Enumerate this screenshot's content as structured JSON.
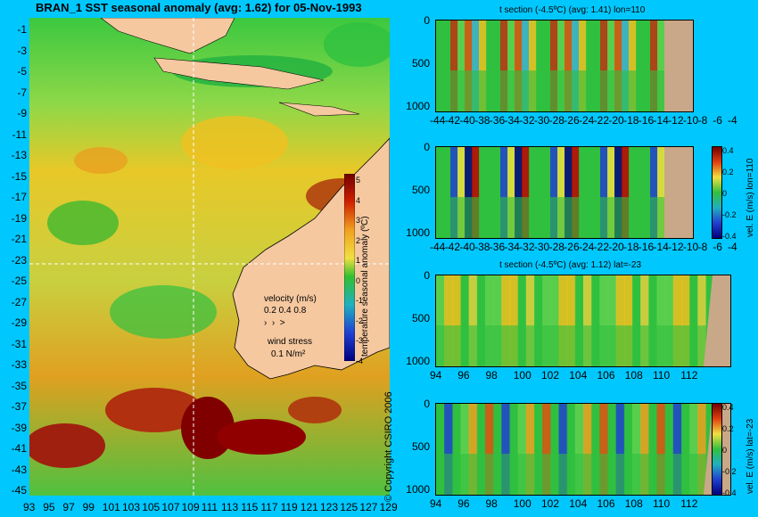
{
  "main": {
    "title": "BRAN_1 SST seasonal anomaly (avg: 1.62) for 05-Nov-1993",
    "lat_ticks": [
      "-1",
      "-3",
      "-5",
      "-7",
      "-9",
      "-11",
      "-13",
      "-15",
      "-17",
      "-19",
      "-21",
      "-23",
      "-25",
      "-27",
      "-29",
      "-31",
      "-33",
      "-35",
      "-37",
      "-39",
      "-41",
      "-43",
      "-45"
    ],
    "lon_ticks": [
      "93",
      "95",
      "97",
      "99",
      "101",
      "103",
      "105",
      "107",
      "109",
      "111",
      "113",
      "115",
      "117",
      "119",
      "121",
      "123",
      "125",
      "127",
      "129"
    ],
    "colorbar": {
      "ticks": [
        "5",
        "4",
        "3",
        "2",
        "1",
        "0",
        "-1",
        "-2",
        "-3",
        "-4"
      ],
      "label": "temperature seasonal anomaly (ºC)"
    },
    "legend": {
      "velocity_label": "velocity (m/s)",
      "velocity_scale": "0.2 0.4 0.8",
      "wind_label": "wind stress",
      "wind_scale": "0.1 N/m²"
    }
  },
  "copyright": "© Copyright CSIRO 2006",
  "sections": [
    {
      "title": "t section (-4.5ºC) (avg: 1.41) lon=110",
      "depth_ticks": [
        "0",
        "500",
        "1000"
      ],
      "x_ticks": [
        "-44",
        "-42",
        "-40",
        "-38",
        "-36",
        "-34",
        "-32",
        "-30",
        "-28",
        "-26",
        "-24",
        "-22",
        "-20",
        "-18",
        "-16",
        "-14",
        "-12",
        "-10",
        "-8",
        "-6",
        "-4"
      ]
    },
    {
      "title": "",
      "depth_ticks": [
        "0",
        "500",
        "1000"
      ],
      "x_ticks": [
        "-44",
        "-42",
        "-40",
        "-38",
        "-36",
        "-34",
        "-32",
        "-30",
        "-28",
        "-26",
        "-24",
        "-22",
        "-20",
        "-18",
        "-16",
        "-14",
        "-12",
        "-10",
        "-8",
        "-6",
        "-4"
      ],
      "colorbar_ticks": [
        "0.4",
        "0.2",
        "0",
        "-0.2",
        "-0.4"
      ],
      "colorbar_label": "vel. E (m/s) lon=110"
    },
    {
      "title": "t section (-4.5ºC) (avg: 1.12) lat=-23",
      "depth_ticks": [
        "0",
        "500",
        "1000"
      ],
      "x_ticks": [
        "94",
        "96",
        "98",
        "100",
        "102",
        "104",
        "106",
        "108",
        "110",
        "112"
      ]
    },
    {
      "title": "",
      "depth_ticks": [
        "0",
        "500",
        "1000"
      ],
      "x_ticks": [
        "94",
        "96",
        "98",
        "100",
        "102",
        "104",
        "106",
        "108",
        "110",
        "112"
      ],
      "colorbar_ticks": [
        "0.4",
        "0.2",
        "0",
        "-0.2",
        "-0.4"
      ],
      "colorbar_label": "vel. E (m/s) lat=-23"
    }
  ],
  "colors": {
    "background": "#00c8ff",
    "land": "#f5c8a0",
    "section_land": "#c8a888",
    "warm": "#c00000",
    "cool": "#0000a0",
    "neutral": "#22c030"
  }
}
